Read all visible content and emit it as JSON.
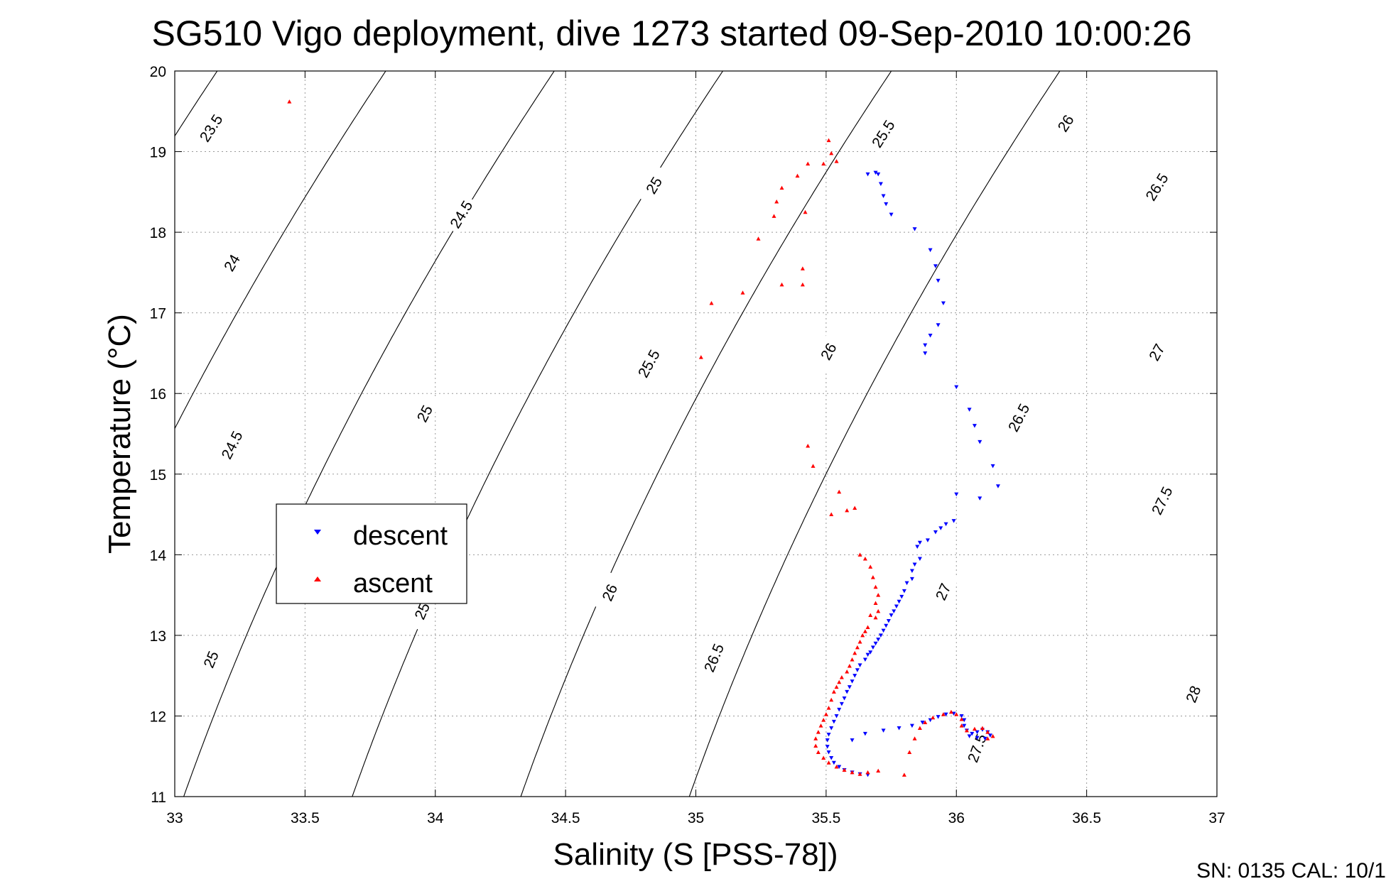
{
  "chart_data": {
    "type": "scatter",
    "title": "SG510 Vigo deployment, dive 1273 started 09-Sep-2010 10:00:26",
    "xlabel": "Salinity (S [PSS-78])",
    "ylabel": "Temperature (°C)",
    "xlim": [
      33,
      37
    ],
    "ylim": [
      11,
      20
    ],
    "grid": true,
    "legend_position": "middle-left",
    "x_ticks": [
      "33",
      "33.5",
      "34",
      "34.5",
      "35",
      "35.5",
      "36",
      "36.5",
      "37"
    ],
    "y_ticks": [
      "11",
      "12",
      "13",
      "14",
      "15",
      "16",
      "17",
      "18",
      "19",
      "20"
    ],
    "density_contours": {
      "line_color": "#000000",
      "levels": [
        23.5,
        24,
        24.5,
        25,
        25.5,
        26,
        26.5,
        27,
        27.5,
        28
      ],
      "labels": [
        {
          "text": "23.5",
          "s": 33.14,
          "t": 19.29
        },
        {
          "text": "24",
          "s": 33.22,
          "t": 17.62
        },
        {
          "text": "24.5",
          "s": 34.1,
          "t": 18.22
        },
        {
          "text": "25",
          "s": 34.84,
          "t": 18.58
        },
        {
          "text": "25.5",
          "s": 35.72,
          "t": 19.22
        },
        {
          "text": "26",
          "s": 36.42,
          "t": 19.35
        },
        {
          "text": "26.5",
          "s": 36.77,
          "t": 18.56
        },
        {
          "text": "24.5",
          "s": 33.22,
          "t": 15.36
        },
        {
          "text": "25",
          "s": 33.96,
          "t": 15.75
        },
        {
          "text": "25.5",
          "s": 34.82,
          "t": 16.37
        },
        {
          "text": "26",
          "s": 35.51,
          "t": 16.52
        },
        {
          "text": "26.5",
          "s": 36.24,
          "t": 15.7
        },
        {
          "text": "27",
          "s": 36.77,
          "t": 16.51
        },
        {
          "text": "25",
          "s": 33.14,
          "t": 12.7
        },
        {
          "text": "25",
          "s": 33.95,
          "t": 13.3
        },
        {
          "text": "26",
          "s": 34.67,
          "t": 13.53
        },
        {
          "text": "26.5",
          "s": 35.07,
          "t": 12.72
        },
        {
          "text": "27",
          "s": 35.95,
          "t": 13.54
        },
        {
          "text": "27.5",
          "s": 36.79,
          "t": 14.67
        },
        {
          "text": "27.5",
          "s": 36.08,
          "t": 11.6
        },
        {
          "text": "28",
          "s": 36.91,
          "t": 12.27
        }
      ]
    },
    "series": [
      {
        "name": "descent",
        "color": "#0000ff",
        "marker": "triangle-down",
        "points": [
          [
            35.66,
            18.72
          ],
          [
            35.69,
            18.74
          ],
          [
            35.7,
            18.72
          ],
          [
            35.71,
            18.6
          ],
          [
            35.72,
            18.45
          ],
          [
            35.73,
            18.35
          ],
          [
            35.75,
            18.22
          ],
          [
            35.84,
            18.04
          ],
          [
            35.9,
            17.78
          ],
          [
            35.92,
            17.58
          ],
          [
            35.93,
            17.4
          ],
          [
            35.95,
            17.12
          ],
          [
            35.93,
            16.85
          ],
          [
            35.9,
            16.72
          ],
          [
            35.88,
            16.6
          ],
          [
            35.88,
            16.5
          ],
          [
            36.0,
            16.08
          ],
          [
            36.05,
            15.8
          ],
          [
            36.07,
            15.6
          ],
          [
            36.09,
            15.4
          ],
          [
            36.14,
            15.1
          ],
          [
            36.16,
            14.85
          ],
          [
            36.09,
            14.7
          ],
          [
            36.0,
            14.75
          ],
          [
            35.99,
            14.42
          ],
          [
            35.96,
            14.38
          ],
          [
            35.94,
            14.33
          ],
          [
            35.92,
            14.28
          ],
          [
            35.89,
            14.18
          ],
          [
            35.86,
            14.15
          ],
          [
            35.85,
            14.1
          ],
          [
            35.86,
            13.95
          ],
          [
            35.84,
            13.88
          ],
          [
            35.83,
            13.8
          ],
          [
            35.83,
            13.7
          ],
          [
            35.81,
            13.65
          ],
          [
            35.8,
            13.55
          ],
          [
            35.79,
            13.48
          ],
          [
            35.78,
            13.42
          ],
          [
            35.77,
            13.36
          ],
          [
            35.76,
            13.3
          ],
          [
            35.75,
            13.25
          ],
          [
            35.74,
            13.18
          ],
          [
            35.73,
            13.12
          ],
          [
            35.72,
            13.06
          ],
          [
            35.71,
            13.0
          ],
          [
            35.7,
            12.95
          ],
          [
            35.69,
            12.9
          ],
          [
            35.68,
            12.85
          ],
          [
            35.67,
            12.79
          ],
          [
            35.66,
            12.76
          ],
          [
            35.65,
            12.7
          ],
          [
            35.63,
            12.63
          ],
          [
            35.62,
            12.57
          ],
          [
            35.61,
            12.5
          ],
          [
            35.6,
            12.43
          ],
          [
            35.59,
            12.36
          ],
          [
            35.58,
            12.3
          ],
          [
            35.57,
            12.22
          ],
          [
            35.56,
            12.15
          ],
          [
            35.55,
            12.08
          ],
          [
            35.54,
            12.0
          ],
          [
            35.53,
            11.93
          ],
          [
            35.52,
            11.85
          ],
          [
            35.51,
            11.77
          ],
          [
            35.505,
            11.7
          ],
          [
            35.505,
            11.62
          ],
          [
            35.51,
            11.55
          ],
          [
            35.52,
            11.48
          ],
          [
            35.53,
            11.42
          ],
          [
            35.55,
            11.37
          ],
          [
            35.57,
            11.33
          ],
          [
            35.6,
            11.3
          ],
          [
            35.63,
            11.28
          ],
          [
            35.66,
            11.27
          ],
          [
            35.6,
            11.7
          ],
          [
            35.65,
            11.78
          ],
          [
            35.72,
            11.82
          ],
          [
            35.78,
            11.85
          ],
          [
            35.83,
            11.88
          ],
          [
            35.87,
            11.92
          ],
          [
            35.9,
            11.95
          ],
          [
            35.93,
            11.99
          ],
          [
            35.96,
            12.02
          ],
          [
            35.99,
            12.03
          ],
          [
            36.02,
            12.0
          ],
          [
            36.03,
            11.95
          ],
          [
            36.03,
            11.88
          ],
          [
            36.04,
            11.82
          ],
          [
            36.06,
            11.78
          ],
          [
            36.08,
            11.8
          ],
          [
            36.1,
            11.83
          ],
          [
            36.12,
            11.8
          ],
          [
            36.13,
            11.76
          ],
          [
            36.11,
            11.72
          ],
          [
            36.08,
            11.73
          ],
          [
            36.05,
            11.75
          ]
        ]
      },
      {
        "name": "ascent",
        "color": "#ff0000",
        "marker": "triangle-up",
        "points": [
          [
            33.44,
            19.62
          ],
          [
            35.51,
            19.14
          ],
          [
            35.52,
            18.98
          ],
          [
            35.54,
            18.88
          ],
          [
            35.49,
            18.85
          ],
          [
            35.43,
            18.85
          ],
          [
            35.39,
            18.7
          ],
          [
            35.33,
            18.55
          ],
          [
            35.31,
            18.38
          ],
          [
            35.42,
            18.25
          ],
          [
            35.3,
            18.2
          ],
          [
            35.24,
            17.92
          ],
          [
            35.41,
            17.55
          ],
          [
            35.33,
            17.35
          ],
          [
            35.41,
            17.35
          ],
          [
            35.18,
            17.25
          ],
          [
            35.06,
            17.12
          ],
          [
            35.02,
            16.45
          ],
          [
            35.43,
            15.35
          ],
          [
            35.45,
            15.1
          ],
          [
            35.55,
            14.78
          ],
          [
            35.52,
            14.5
          ],
          [
            35.58,
            14.55
          ],
          [
            35.61,
            14.58
          ],
          [
            35.63,
            14.0
          ],
          [
            35.65,
            13.95
          ],
          [
            35.67,
            13.85
          ],
          [
            35.68,
            13.72
          ],
          [
            35.69,
            13.6
          ],
          [
            35.7,
            13.5
          ],
          [
            35.69,
            13.4
          ],
          [
            35.7,
            13.3
          ],
          [
            35.69,
            13.22
          ],
          [
            35.67,
            13.25
          ],
          [
            35.66,
            13.1
          ],
          [
            35.65,
            13.05
          ],
          [
            35.64,
            13.0
          ],
          [
            35.63,
            12.92
          ],
          [
            35.62,
            12.85
          ],
          [
            35.61,
            12.78
          ],
          [
            35.6,
            12.7
          ],
          [
            35.59,
            12.62
          ],
          [
            35.58,
            12.55
          ],
          [
            35.56,
            12.48
          ],
          [
            35.55,
            12.42
          ],
          [
            35.54,
            12.36
          ],
          [
            35.53,
            12.3
          ],
          [
            35.52,
            12.2
          ],
          [
            35.51,
            12.1
          ],
          [
            35.5,
            12.02
          ],
          [
            35.49,
            11.95
          ],
          [
            35.48,
            11.88
          ],
          [
            35.47,
            11.8
          ],
          [
            35.46,
            11.72
          ],
          [
            35.46,
            11.63
          ],
          [
            35.47,
            11.55
          ],
          [
            35.49,
            11.48
          ],
          [
            35.51,
            11.42
          ],
          [
            35.54,
            11.37
          ],
          [
            35.57,
            11.33
          ],
          [
            35.6,
            11.3
          ],
          [
            35.63,
            11.28
          ],
          [
            35.66,
            11.3
          ],
          [
            35.7,
            11.32
          ],
          [
            35.8,
            11.27
          ],
          [
            35.82,
            11.55
          ],
          [
            35.84,
            11.72
          ],
          [
            35.86,
            11.85
          ],
          [
            35.88,
            11.92
          ],
          [
            35.91,
            11.98
          ],
          [
            35.95,
            12.02
          ],
          [
            35.98,
            12.05
          ],
          [
            36.0,
            12.02
          ],
          [
            36.02,
            11.96
          ],
          [
            36.02,
            11.88
          ],
          [
            36.04,
            11.82
          ],
          [
            36.07,
            11.84
          ],
          [
            36.1,
            11.85
          ],
          [
            36.12,
            11.8
          ],
          [
            36.14,
            11.75
          ],
          [
            36.12,
            11.72
          ]
        ]
      }
    ]
  },
  "title_text": "SG510 Vigo deployment, dive 1273 started 09-Sep-2010 10:00:26",
  "footer_text": "SN: 0135  CAL: 10/1"
}
